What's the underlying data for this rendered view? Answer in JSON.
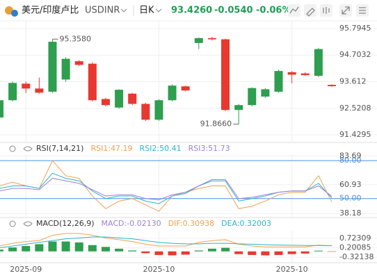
{
  "header": {
    "symbol": "美元/印度卢比",
    "code": "USDINR",
    "period": "日K",
    "price": "93.4260",
    "change": "-0.0540",
    "change_pct": "-0.06%"
  },
  "chart_data": [
    {
      "type": "candlestick",
      "categories": [
        null,
        null,
        "2025-09",
        null,
        null,
        null,
        null,
        null,
        null,
        null,
        null,
        null,
        "2025-10",
        null,
        null,
        null,
        null,
        null,
        null,
        null,
        null,
        null,
        "2025-10",
        null,
        null,
        null
      ],
      "open": [
        92.14,
        92.85,
        93.53,
        93.33,
        93.2,
        93.7,
        94.45,
        94.35,
        92.9,
        92.55,
        93.12,
        92.7,
        92.05,
        92.85,
        93.42,
        95.2,
        95.4,
        95.35,
        92.45,
        92.65,
        93.0,
        93.2,
        94.0,
        93.95,
        93.85,
        93.48
      ],
      "high": [
        92.9,
        93.62,
        93.62,
        93.78,
        95.358,
        94.62,
        94.5,
        94.4,
        92.95,
        93.3,
        93.15,
        92.75,
        92.9,
        93.5,
        93.45,
        95.42,
        95.45,
        95.38,
        92.7,
        93.38,
        93.35,
        94.1,
        94.05,
        94.0,
        95.0,
        93.5
      ],
      "low": [
        92.1,
        92.8,
        93.15,
        93.12,
        93.15,
        93.6,
        94.25,
        92.8,
        92.6,
        92.5,
        92.65,
        92.0,
        92.0,
        92.8,
        93.22,
        94.95,
        95.3,
        92.4,
        91.866,
        92.6,
        92.95,
        93.15,
        93.55,
        93.85,
        93.8,
        93.4
      ],
      "close": [
        92.85,
        93.56,
        93.33,
        93.16,
        95.25,
        94.55,
        94.3,
        92.85,
        92.65,
        93.28,
        92.7,
        92.05,
        92.85,
        93.45,
        93.25,
        95.4,
        95.35,
        92.45,
        92.65,
        93.35,
        93.3,
        94.05,
        93.9,
        93.88,
        94.95,
        93.426
      ],
      "up_color": "#2e9e4f",
      "down_color": "#e8382f",
      "ylim": [
        91.116,
        96.108
      ],
      "yticks": [
        95.7945,
        94.7032,
        93.612,
        92.5208,
        91.4295
      ],
      "grid": true,
      "annotations": [
        {
          "label": "95.3580",
          "value": 95.358
        },
        {
          "label": "91.8660",
          "value": 91.866
        }
      ]
    },
    {
      "type": "line",
      "title": "RSI(7,14,21)",
      "series": [
        {
          "name": "RSI1:47.19",
          "color": "#f0a050",
          "values": [
            60,
            63,
            60,
            58,
            80,
            68,
            66,
            52,
            42,
            48,
            50,
            45,
            40,
            52,
            55,
            58,
            60,
            60,
            42,
            44,
            48,
            53,
            55,
            55,
            68,
            47.19
          ]
        },
        {
          "name": "RSI2:50.41",
          "color": "#26b5c8",
          "values": [
            58,
            60,
            60,
            58,
            70,
            66,
            64,
            56,
            50,
            52,
            52,
            48,
            46,
            52,
            54,
            60,
            64,
            64,
            48,
            50,
            52,
            55,
            56,
            56,
            62,
            50.41
          ]
        },
        {
          "name": "RSI3:51.73",
          "color": "#9a7fd8",
          "values": [
            56,
            58,
            58,
            57,
            66,
            64,
            62,
            57,
            52,
            53,
            53,
            50,
            49,
            53,
            55,
            60,
            65,
            65,
            50,
            51,
            53,
            55,
            56,
            56,
            60,
            51.73
          ]
        }
      ],
      "ylim": [
        35,
        85
      ],
      "yticks": [
        {
          "value": 80,
          "label": "80.00"
        },
        83.69,
        60.93,
        {
          "value": 50,
          "label": "50.00"
        },
        38.18
      ],
      "hlines": [
        80,
        50
      ],
      "hline_color": "#4a90e2"
    },
    {
      "type": "macd",
      "title": "MACD(12,26,9)",
      "series": [
        {
          "name": "MACD:-0.02130",
          "kind": "bar",
          "color": "#9a7fd8",
          "up_color": "#2e9e4f",
          "down_color": "#e8382f",
          "values": [
            0.1,
            0.22,
            0.3,
            0.4,
            0.55,
            0.55,
            0.5,
            0.35,
            0.25,
            0.15,
            0.05,
            -0.1,
            -0.2,
            -0.22,
            -0.18,
            0.05,
            0.15,
            0.2,
            -0.15,
            -0.2,
            -0.22,
            -0.2,
            -0.15,
            -0.12,
            0.04,
            -0.0213
          ]
        },
        {
          "name": "DIF:0.30938",
          "kind": "line",
          "color": "#f0a050",
          "values": [
            0.3,
            0.45,
            0.55,
            0.6,
            0.9,
            1.0,
            1.0,
            0.9,
            0.75,
            0.65,
            0.55,
            0.4,
            0.3,
            0.3,
            0.3,
            0.5,
            0.6,
            0.65,
            0.4,
            0.3,
            0.25,
            0.25,
            0.25,
            0.25,
            0.35,
            0.30938
          ]
        },
        {
          "name": "DEA:0.32003",
          "kind": "line",
          "color": "#26b5c8",
          "values": [
            0.2,
            0.3,
            0.4,
            0.5,
            0.6,
            0.7,
            0.75,
            0.8,
            0.8,
            0.75,
            0.7,
            0.6,
            0.5,
            0.45,
            0.42,
            0.42,
            0.45,
            0.45,
            0.42,
            0.4,
            0.37,
            0.35,
            0.34,
            0.33,
            0.33,
            0.32003
          ]
        }
      ],
      "ylim": [
        -0.63,
        1.15
      ],
      "yticks": [
        0.72309,
        0.20085,
        -0.32138
      ]
    }
  ]
}
